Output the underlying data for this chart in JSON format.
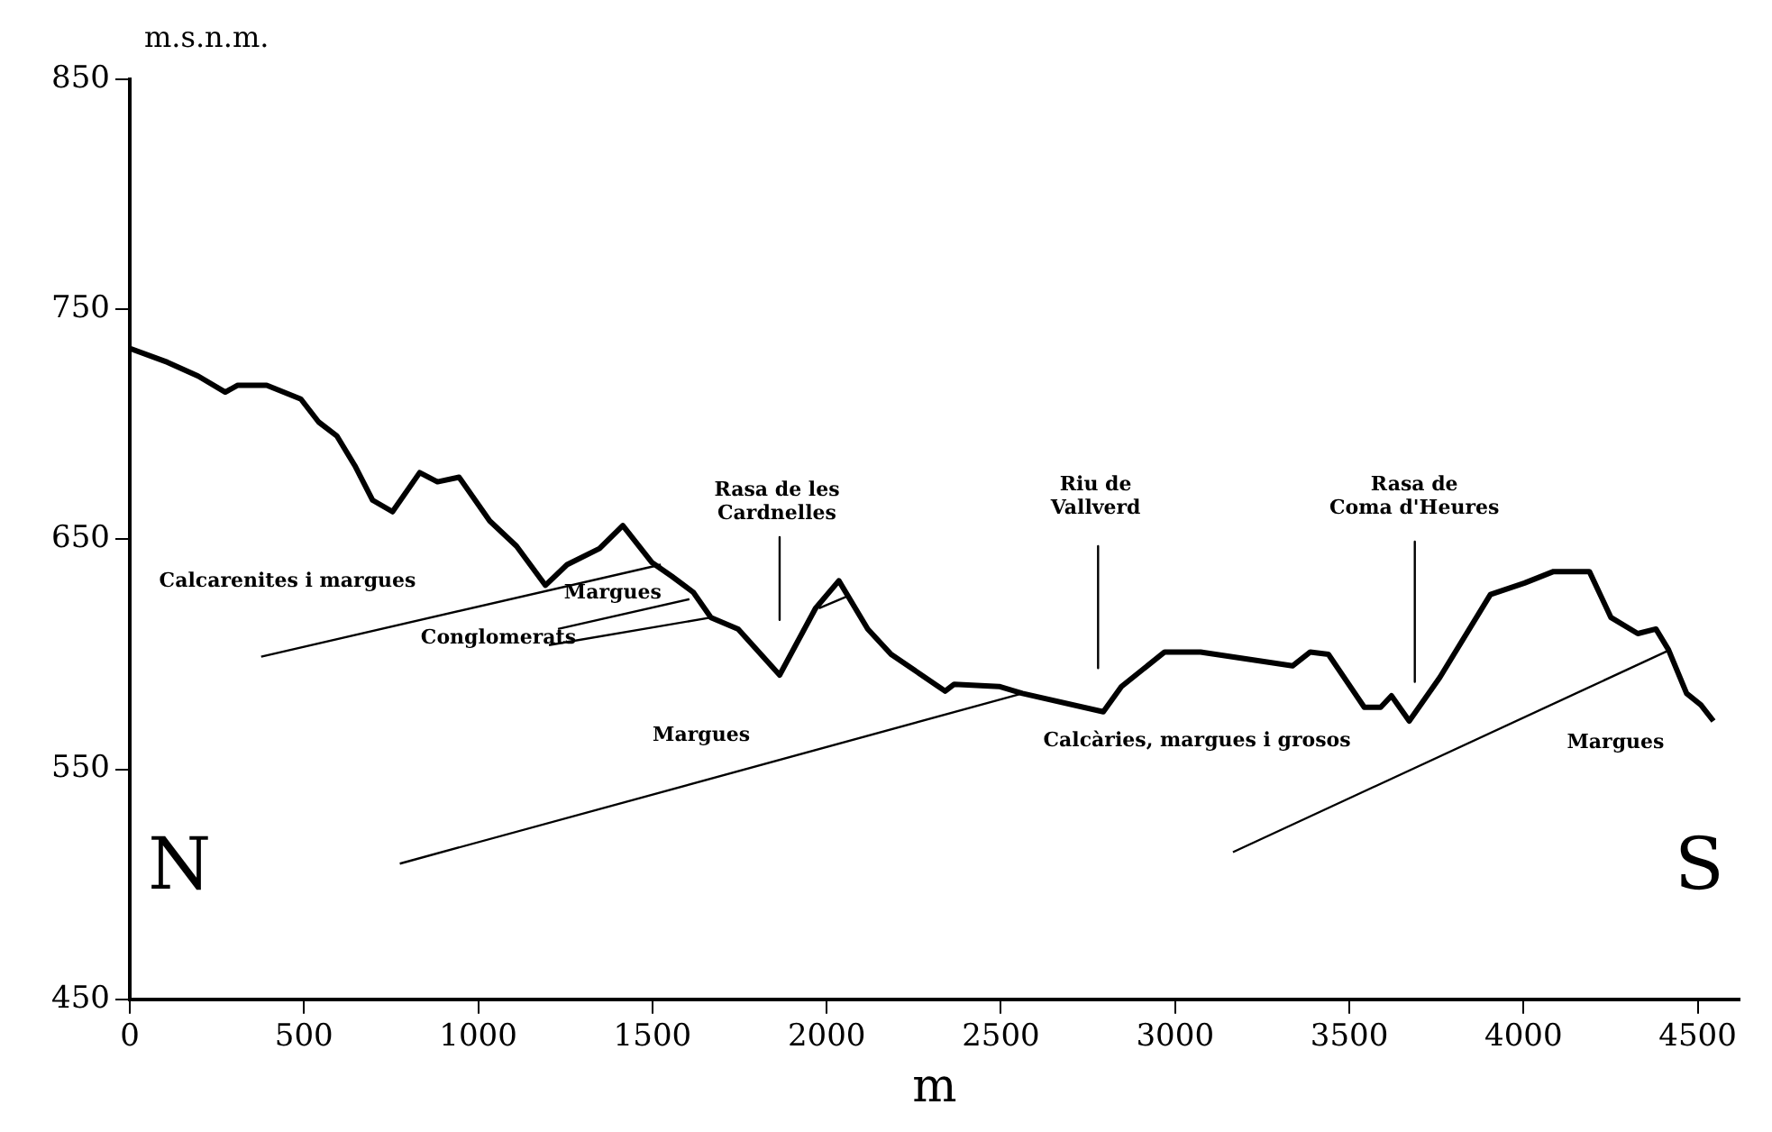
{
  "chart_data": {
    "type": "line",
    "ylabel": "m.s.n.m.",
    "xlabel": "m",
    "xlim": [
      0,
      4620
    ],
    "ylim": [
      450,
      850
    ],
    "xticks": [
      0,
      500,
      1000,
      1500,
      2000,
      2500,
      3000,
      3500,
      4000,
      4500
    ],
    "yticks": [
      450,
      550,
      650,
      750,
      850
    ],
    "grid": false,
    "legend": false,
    "marker": "none",
    "line_style": "solid",
    "series": [
      {
        "color": "#000000",
        "x": [
          0,
          108,
          196,
          274,
          310,
          393,
          491,
          542,
          594,
          646,
          697,
          754,
          832,
          883,
          945,
          1033,
          1110,
          1193,
          1255,
          1348,
          1415,
          1498,
          1555,
          1617,
          1668,
          1746,
          1865,
          1968,
          2035,
          2118,
          2185,
          2340,
          2366,
          2495,
          2562,
          2794,
          2846,
          2970,
          3073,
          3337,
          3388,
          3440,
          3543,
          3590,
          3621,
          3672,
          3760,
          3905,
          4003,
          4086,
          4189,
          4251,
          4328,
          4380,
          4416,
          4468,
          4509,
          4545
        ],
        "values": [
          733,
          727,
          721,
          714,
          717,
          717,
          711,
          701,
          695,
          682,
          667,
          662,
          679,
          675,
          677,
          658,
          647,
          630,
          639,
          646,
          656,
          640,
          634,
          627,
          616,
          611,
          591,
          620,
          632,
          611,
          600,
          584,
          587,
          586,
          583,
          575,
          586,
          601,
          601,
          595,
          601,
          600,
          577,
          577,
          582,
          571,
          590,
          626,
          631,
          636,
          636,
          616,
          609,
          611,
          602,
          583,
          578,
          571
        ]
      },
      {
        "color": "#000000",
        "x": [
          377,
          1524
        ],
        "values": [
          599,
          639
        ]
      },
      {
        "color": "#000000",
        "x": [
          1229,
          1606
        ],
        "values": [
          611,
          624
        ]
      },
      {
        "color": "#000000",
        "x": [
          1203,
          1668
        ],
        "values": [
          604,
          616
        ]
      },
      {
        "color": "#000000",
        "x": [
          1978,
          2056
        ],
        "values": [
          620,
          625
        ]
      },
      {
        "color": "#000000",
        "x": [
          775,
          2562
        ],
        "values": [
          509,
          583
        ]
      },
      {
        "color": "#000000",
        "x": [
          3166,
          4421
        ],
        "values": [
          514,
          602
        ]
      },
      {
        "color": "#000000",
        "x": [
          1865,
          1865
        ],
        "values": [
          651,
          615
        ]
      },
      {
        "color": "#000000",
        "x": [
          2779,
          2779
        ],
        "values": [
          647,
          594
        ]
      },
      {
        "color": "#000000",
        "x": [
          3688,
          3688
        ],
        "values": [
          649,
          588
        ]
      }
    ],
    "annotations": [
      "Calcarenites i margues",
      "Margues",
      "Conglomerats",
      "Margues",
      "Calcàries, margues i grosos",
      "Margues",
      "Rasa de les\nCardnelles",
      "Riu de\nVallverd",
      "Rasa de\nComa d'Heures",
      "N",
      "S"
    ]
  }
}
